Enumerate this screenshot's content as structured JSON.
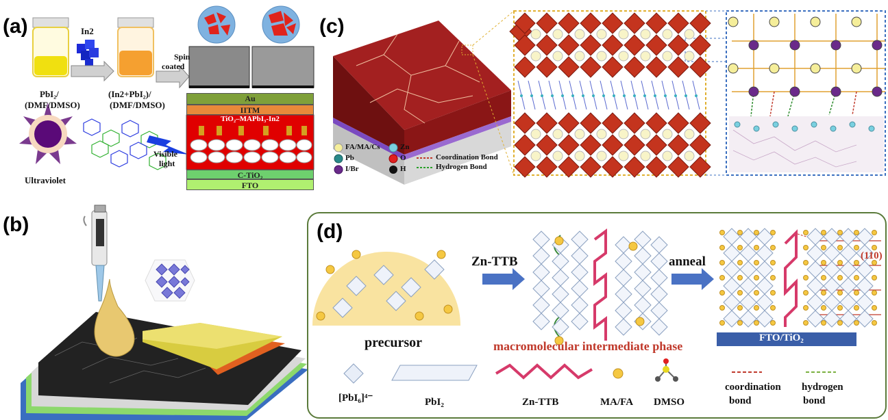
{
  "panels": {
    "a": "(a)",
    "b": "(b)",
    "c": "(c)",
    "d": "(d)"
  },
  "panel_a": {
    "in2_label": "In2",
    "spin_label_1": "Spin",
    "spin_label_2": "coated",
    "vial1_label_1": "PbI₂/",
    "vial1_label_2": "(DMF/DMSO)",
    "vial2_label_1": "(In2+PbI₂)/",
    "vial2_label_2": "(DMF/DMSO)",
    "ultraviolet": "Ultraviolet",
    "visible_1": "Visible",
    "visible_2": "light",
    "layers": [
      "Au",
      "IITM",
      "TiO₂–MAPbI₃-In2",
      "C-TiO₂",
      "FTO"
    ]
  },
  "panel_c": {
    "legend": {
      "fa_ma_cs": "FA/MA/Cs",
      "zn": "Zn",
      "pb": "Pb",
      "o": "O",
      "i_br": "I/Br",
      "h": "H",
      "coordination": "Coordination Bond",
      "hydrogen": "Hydrogen Bond"
    }
  },
  "panel_d": {
    "zn_ttb_arrow": "Zn-TTB",
    "anneal_arrow": "anneal",
    "plane_110": "(110)",
    "precursor": "precursor",
    "intermediate": "macromolecular intermediate phase",
    "fto_tio2": "FTO/TiO₂",
    "legend": {
      "pbi6": "[PbI₆]⁴⁻",
      "pbi2": "PbI₂",
      "znttb": "Zn-TTB",
      "mafa": "MA/FA",
      "dmso": "DMSO",
      "coord_1": "coordination",
      "coord_2": "bond",
      "hyd_1": "hydrogen",
      "hyd_2": "bond"
    }
  },
  "colors": {
    "perovskite_red": "#b5201c",
    "crystal_red": "#c4341e",
    "border_yellow": "#e0b030",
    "border_blue": "#3b6fc0",
    "panel_green": "#5a7a3a",
    "arrow_blue": "#4a72c4",
    "label_red": "#c0392b",
    "ttb_pink": "#d63a6a"
  }
}
